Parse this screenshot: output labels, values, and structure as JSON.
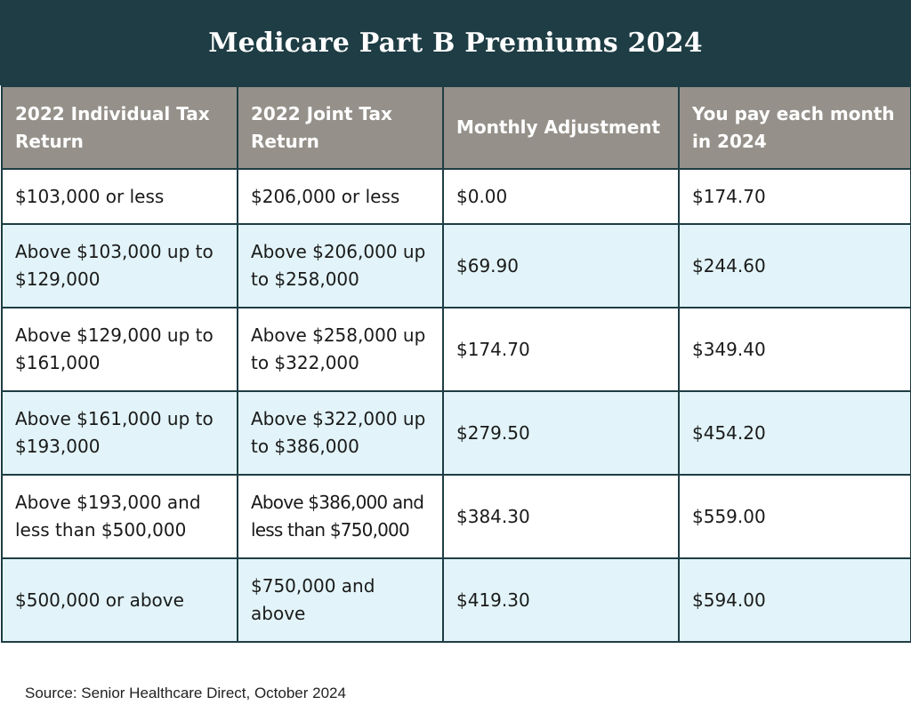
{
  "title": "Medicare Part B Premiums 2024",
  "table": {
    "headers": [
      "2022 Individual Tax Return",
      "2022 Joint Tax Return",
      "Monthly Adjustment",
      "You pay each month in 2024"
    ],
    "rows": [
      [
        "$103,000 or less",
        "$206,000 or less",
        "$0.00",
        "$174.70"
      ],
      [
        "Above $103,000 up to $129,000",
        "Above $206,000 up to $258,000",
        "$69.90",
        "$244.60"
      ],
      [
        "Above $129,000 up to $161,000",
        "Above $258,000 up to $322,000",
        "$174.70",
        "$349.40"
      ],
      [
        "Above $161,000 up to $193,000",
        "Above $322,000 up to $386,000",
        "$279.50",
        "$454.20"
      ],
      [
        "Above $193,000 and less than $500,000",
        "Above $386,000 and less than $750,000",
        "$384.30",
        "$559.00"
      ],
      [
        "$500,000 or above",
        "$750,000 and above",
        "$419.30",
        "$594.00"
      ]
    ]
  },
  "source": "Source: Senior Healthcare Direct, October 2024",
  "colors": {
    "title_background": "#1e3d44",
    "header_background": "#95918a",
    "alt_row_background": "#e2f4f9",
    "border": "#1e3d44"
  }
}
